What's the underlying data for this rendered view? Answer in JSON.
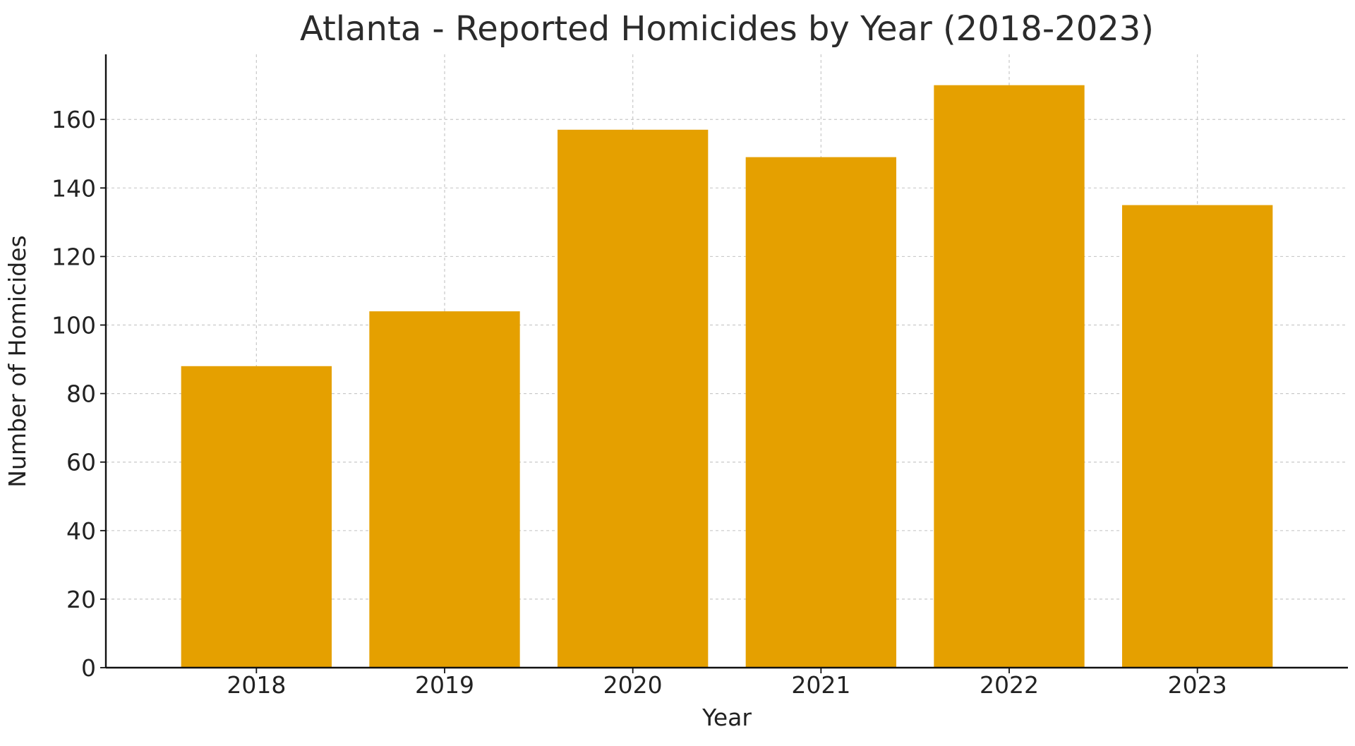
{
  "chart_data": {
    "type": "bar",
    "title": "Atlanta - Reported Homicides by Year (2018-2023)",
    "xlabel": "Year",
    "ylabel": "Number of Homicides",
    "categories": [
      "2018",
      "2019",
      "2020",
      "2021",
      "2022",
      "2023"
    ],
    "values": [
      88,
      104,
      157,
      149,
      170,
      135
    ],
    "ylim": [
      0,
      179
    ],
    "yticks": [
      0,
      20,
      40,
      60,
      80,
      100,
      120,
      140,
      160
    ],
    "grid": true,
    "bar_color": "#E5A000"
  }
}
